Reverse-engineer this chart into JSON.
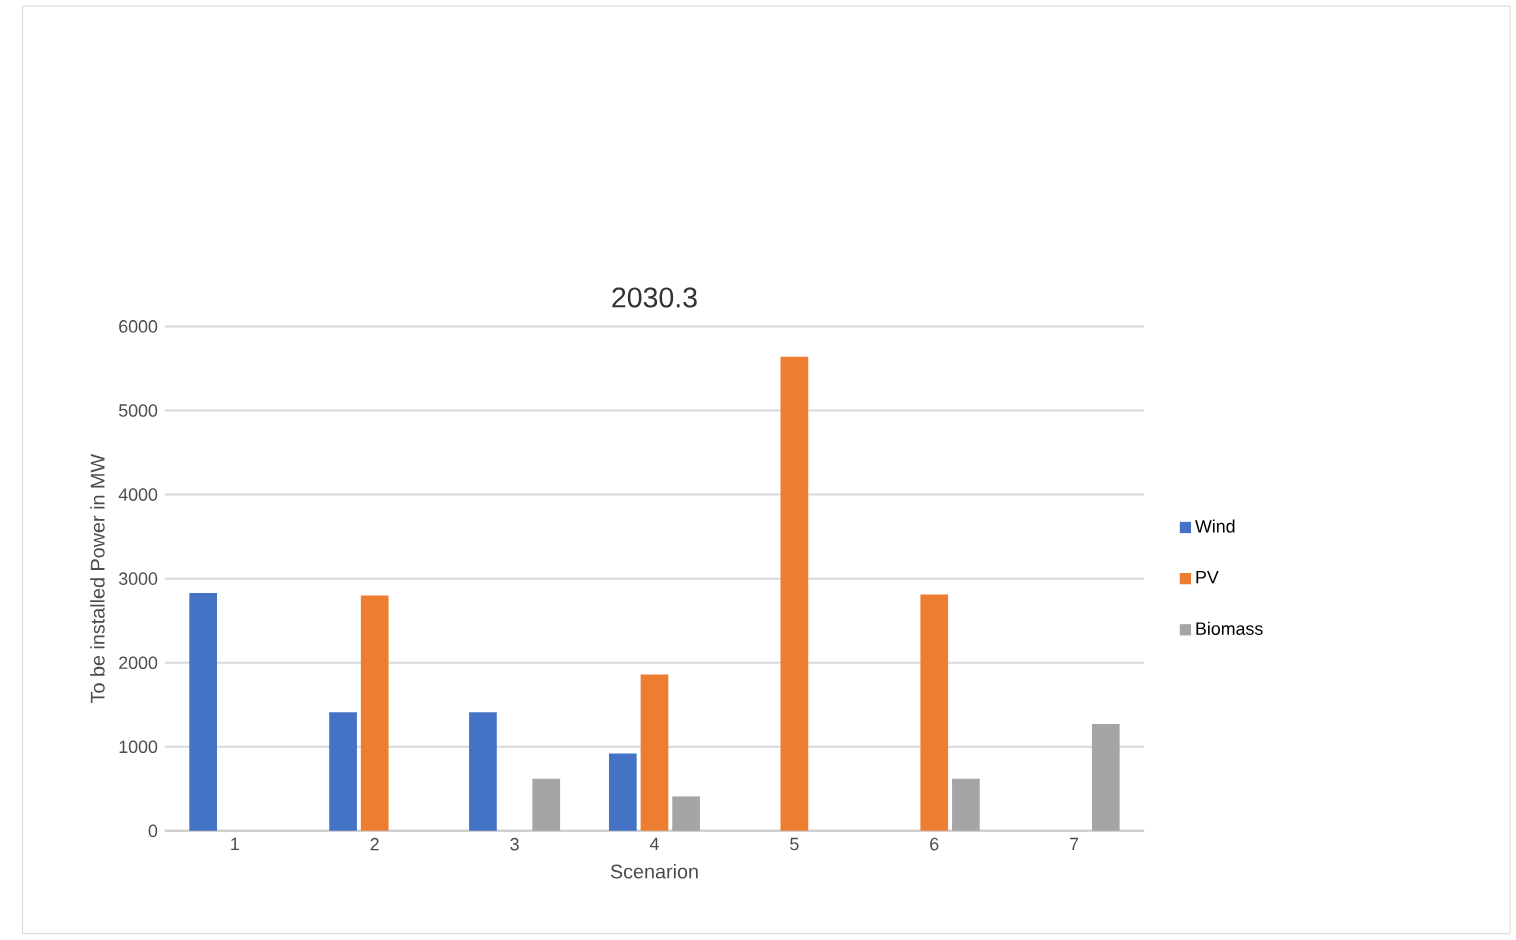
{
  "chart_data": {
    "type": "bar",
    "title": "2030.3",
    "xlabel": "Scenarion",
    "ylabel": "To be installed Power in MW",
    "categories": [
      "1",
      "2",
      "3",
      "4",
      "5",
      "6",
      "7"
    ],
    "series": [
      {
        "name": "Wind",
        "color": "#4472c4",
        "values": [
          2830,
          1410,
          1410,
          920,
          0,
          0,
          0
        ]
      },
      {
        "name": "PV",
        "color": "#ed7d31",
        "values": [
          0,
          2800,
          0,
          1860,
          5640,
          2810,
          0
        ]
      },
      {
        "name": "Biomass",
        "color": "#a5a5a5",
        "values": [
          0,
          0,
          620,
          410,
          0,
          620,
          1270
        ]
      }
    ],
    "ylim": [
      0,
      6000
    ],
    "yticks": [
      0,
      1000,
      2000,
      3000,
      4000,
      5000,
      6000
    ],
    "grid": "y",
    "legend": "right"
  }
}
